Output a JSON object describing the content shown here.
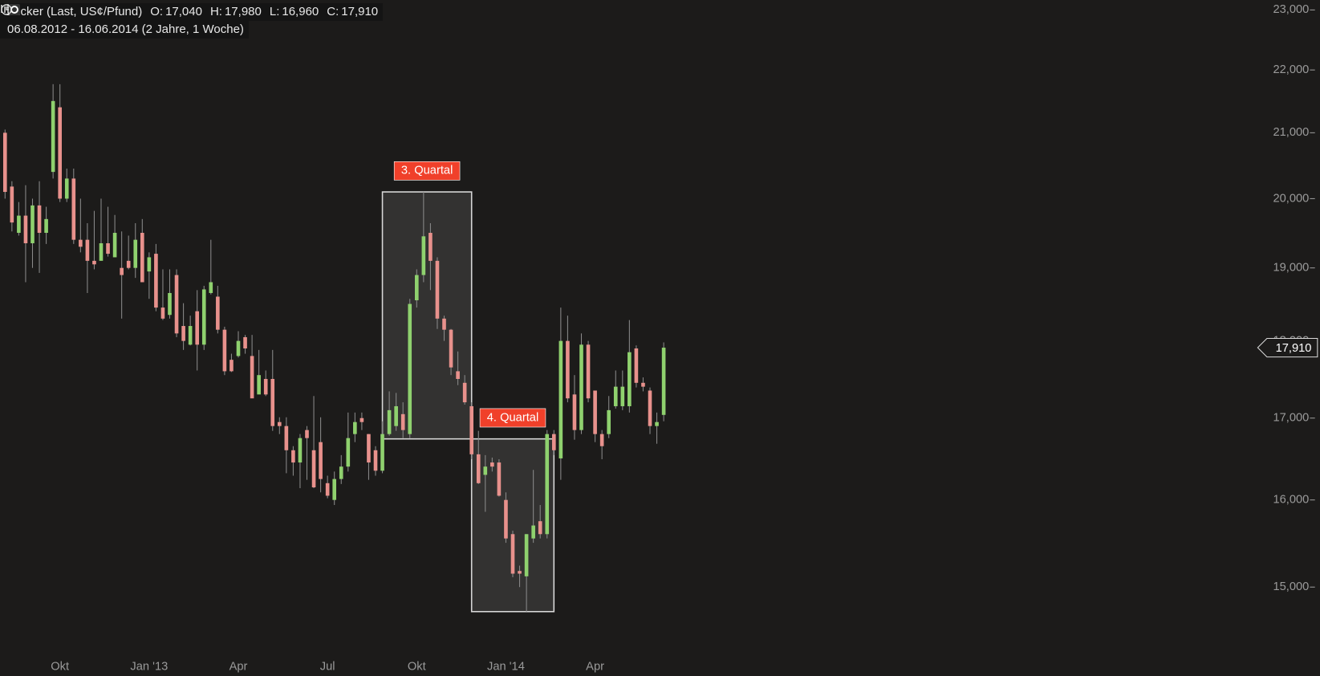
{
  "chart_data": {
    "type": "candlestick",
    "title": "Zucker (Last, US¢/Pfund)",
    "quote": [
      {
        "label": "O:",
        "text": "17,040"
      },
      {
        "label": "H:",
        "text": "17,980"
      },
      {
        "label": "L:",
        "text": "16,960"
      },
      {
        "label": "C:",
        "text": "17,910"
      }
    ],
    "subtitle": "06.08.2012 - 16.06.2014 (2 Jahre, 1 Woche)",
    "categories": [
      null,
      null,
      null,
      null,
      null,
      null,
      null,
      null,
      "Okt",
      null,
      null,
      null,
      null,
      null,
      null,
      null,
      null,
      null,
      null,
      null,
      null,
      "Jan '13",
      null,
      null,
      null,
      null,
      null,
      null,
      null,
      null,
      null,
      null,
      null,
      null,
      "Apr",
      null,
      null,
      null,
      null,
      null,
      null,
      null,
      null,
      null,
      null,
      null,
      null,
      "Jul",
      null,
      null,
      null,
      null,
      null,
      null,
      null,
      null,
      null,
      null,
      null,
      null,
      "Okt",
      null,
      null,
      null,
      null,
      null,
      null,
      null,
      null,
      null,
      null,
      null,
      null,
      "Jan '14",
      null,
      null,
      null,
      null,
      null,
      null,
      null,
      null,
      null,
      null,
      null,
      null,
      "Apr",
      null,
      null,
      null,
      null,
      null,
      null,
      null,
      null,
      null,
      null
    ],
    "open": [
      21.0,
      20.18,
      19.5,
      19.75,
      19.35,
      19.9,
      19.5,
      20.4,
      21.4,
      20.0,
      20.3,
      19.4,
      19.4,
      19.1,
      19.1,
      19.35,
      19.15,
      19.0,
      19.1,
      19.0,
      19.5,
      18.95,
      19.2,
      18.45,
      18.35,
      18.9,
      18.2,
      17.95,
      18.4,
      17.95,
      18.65,
      18.6,
      18.15,
      17.75,
      17.8,
      18.05,
      17.8,
      17.3,
      17.5,
      17.5,
      16.95,
      16.9,
      16.6,
      16.45,
      16.85,
      16.6,
      16.7,
      16.2,
      16.0,
      16.25,
      16.4,
      16.8,
      17.0,
      16.8,
      16.6,
      16.35,
      16.8,
      16.9,
      17.05,
      16.8,
      18.55,
      18.9,
      19.5,
      19.1,
      18.3,
      18.15,
      17.6,
      17.45,
      17.15,
      16.55,
      16.3,
      16.45,
      16.45,
      16.0,
      15.6,
      15.18,
      15.12,
      15.55,
      15.75,
      15.6,
      16.8,
      16.5,
      18.0,
      17.3,
      16.85,
      17.95,
      17.35,
      16.8,
      16.8,
      17.15,
      17.15,
      17.15,
      17.9,
      17.45,
      17.35,
      16.9,
      17.04
    ],
    "high": [
      21.05,
      20.26,
      19.95,
      20.2,
      20.0,
      20.26,
      19.88,
      21.77,
      21.77,
      20.45,
      20.45,
      20.0,
      19.64,
      19.82,
      20.0,
      19.88,
      19.76,
      19.52,
      19.46,
      19.64,
      19.7,
      19.22,
      19.34,
      18.98,
      18.98,
      18.98,
      18.51,
      18.34,
      18.69,
      18.75,
      19.4,
      18.75,
      18.19,
      17.83,
      18.13,
      18.08,
      18.08,
      17.88,
      17.61,
      17.88,
      17.01,
      17.01,
      16.65,
      16.8,
      16.9,
      17.28,
      17.01,
      16.29,
      16.34,
      16.54,
      17.07,
      17.07,
      17.07,
      16.8,
      16.65,
      16.96,
      17.34,
      17.32,
      17.2,
      18.57,
      18.98,
      20.1,
      19.64,
      19.15,
      18.34,
      18.16,
      17.86,
      17.55,
      17.2,
      16.84,
      16.54,
      16.51,
      16.49,
      16.09,
      15.64,
      15.24,
      15.6,
      16.36,
      15.94,
      16.85,
      16.85,
      18.45,
      18.34,
      17.55,
      18.1,
      18.0,
      17.34,
      16.85,
      17.28,
      17.61,
      17.61,
      18.28,
      17.94,
      17.52,
      17.39,
      17.07,
      17.98
    ],
    "low": [
      20.0,
      19.52,
      19.46,
      18.8,
      19.0,
      18.93,
      19.34,
      20.3,
      19.95,
      19.95,
      19.34,
      19.22,
      18.65,
      18.98,
      19.16,
      19.16,
      19.16,
      18.3,
      18.98,
      18.86,
      18.8,
      18.57,
      18.4,
      18.28,
      18.3,
      18.05,
      17.88,
      17.94,
      17.61,
      17.88,
      18.63,
      18.1,
      17.55,
      17.59,
      17.78,
      17.83,
      17.26,
      17.34,
      17.28,
      16.84,
      16.8,
      16.32,
      16.29,
      16.14,
      16.24,
      16.14,
      16.09,
      16.02,
      15.94,
      16.19,
      16.34,
      16.7,
      16.85,
      16.24,
      16.29,
      16.32,
      16.78,
      16.84,
      16.75,
      16.75,
      18.45,
      18.8,
      18.69,
      18.16,
      18.0,
      17.55,
      17.42,
      17.17,
      16.49,
      16.19,
      15.86,
      16.34,
      16.04,
      15.5,
      15.11,
      15.0,
      14.73,
      15.5,
      15.55,
      15.55,
      16.54,
      16.24,
      17.2,
      16.73,
      16.8,
      17.2,
      16.7,
      16.49,
      16.75,
      17.12,
      17.1,
      17.07,
      17.39,
      17.34,
      16.8,
      16.68,
      16.96
    ],
    "close": [
      20.1,
      19.65,
      19.75,
      19.35,
      19.9,
      19.5,
      19.7,
      21.5,
      20.0,
      20.3,
      19.4,
      19.3,
      19.1,
      19.05,
      19.35,
      19.2,
      19.5,
      18.9,
      19.0,
      19.4,
      18.8,
      19.15,
      18.45,
      18.3,
      18.65,
      18.1,
      18.0,
      18.2,
      17.95,
      18.7,
      18.8,
      18.15,
      17.6,
      17.6,
      18.0,
      17.9,
      17.25,
      17.55,
      17.3,
      16.9,
      16.9,
      16.6,
      16.45,
      16.75,
      16.75,
      16.15,
      16.25,
      16.05,
      16.25,
      16.4,
      16.75,
      16.95,
      16.95,
      16.45,
      16.35,
      16.8,
      17.1,
      17.15,
      16.85,
      18.5,
      18.9,
      19.45,
      19.1,
      18.3,
      18.15,
      17.65,
      17.5,
      17.2,
      16.55,
      16.2,
      16.4,
      16.4,
      16.05,
      15.55,
      15.15,
      15.15,
      15.6,
      15.7,
      15.6,
      16.8,
      16.6,
      18.0,
      17.25,
      16.85,
      17.95,
      17.25,
      16.8,
      16.65,
      17.1,
      17.4,
      17.4,
      17.85,
      17.45,
      17.4,
      16.9,
      16.95,
      17.91
    ],
    "up_color": "#8fd16e",
    "down_color": "#e8918c",
    "wick_color": "#8a8a8a",
    "log_y": true,
    "ylim": [
      14.3,
      23.17
    ],
    "yticks": [
      {
        "value": 15,
        "label": "15,000"
      },
      {
        "value": 16,
        "label": "16,000"
      },
      {
        "value": 17,
        "label": "17,000"
      },
      {
        "value": 18,
        "label": "18,000"
      },
      {
        "value": 19,
        "label": "19,000"
      },
      {
        "value": 20,
        "label": "20,000"
      },
      {
        "value": 21,
        "label": "21,000"
      },
      {
        "value": 22,
        "label": "22,000"
      },
      {
        "value": 23,
        "label": "23,000"
      }
    ],
    "last_price": {
      "value": 17.91,
      "label": "17,910"
    },
    "annotations": [
      {
        "text": "3. Quartal",
        "x": [
          55,
          68
        ],
        "y": [
          16.74,
          20.1
        ]
      },
      {
        "text": "4. Quartal",
        "x": [
          68,
          80
        ],
        "y": [
          14.73,
          16.74
        ]
      }
    ],
    "annotation_color": "#f0402a"
  }
}
